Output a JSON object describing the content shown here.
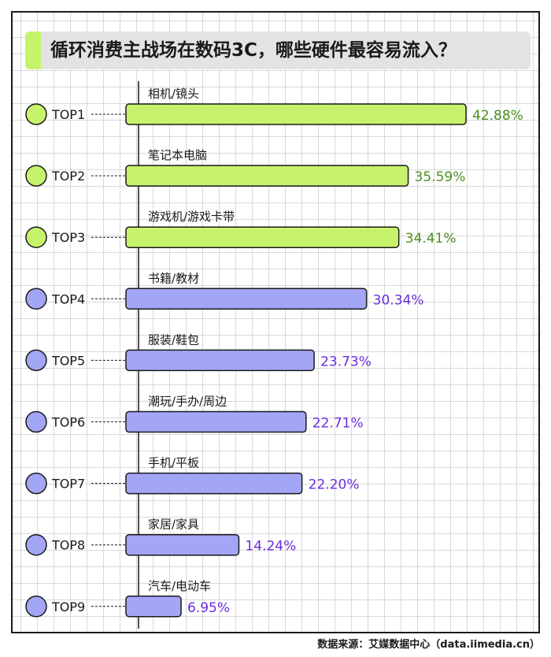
{
  "title": "循环消费主战场在数码3C，哪些硬件最容易流入？",
  "footer": "数据来源：艾媒数据中心（data.iimedia.cn）",
  "colors": {
    "top_fill": "#c6f36b",
    "top_value_text": "#4a8f1f",
    "rest_fill": "#a3a5f5",
    "rest_value_text": "#6a2be0",
    "outline": "#1a1a1a"
  },
  "chart_data": {
    "type": "bar",
    "orientation": "horizontal",
    "ranks": [
      "TOP1",
      "TOP2",
      "TOP3",
      "TOP4",
      "TOP5",
      "TOP6",
      "TOP7",
      "TOP8",
      "TOP9"
    ],
    "categories": [
      "相机/镜头",
      "笔记本电脑",
      "游戏机/游戏卡带",
      "书籍/教材",
      "服装/鞋包",
      "潮玩/手办/周边",
      "手机/平板",
      "家居/家具",
      "汽车/电动车"
    ],
    "values": [
      42.88,
      35.59,
      34.41,
      30.34,
      23.73,
      22.71,
      22.2,
      14.24,
      6.95
    ],
    "value_labels": [
      "42.88%",
      "35.59%",
      "34.41%",
      "30.34%",
      "23.73%",
      "22.71%",
      "22.20%",
      "14.24%",
      "6.95%"
    ],
    "unit": "%",
    "highlighted_top": 3,
    "grid": false,
    "legend": "none"
  }
}
